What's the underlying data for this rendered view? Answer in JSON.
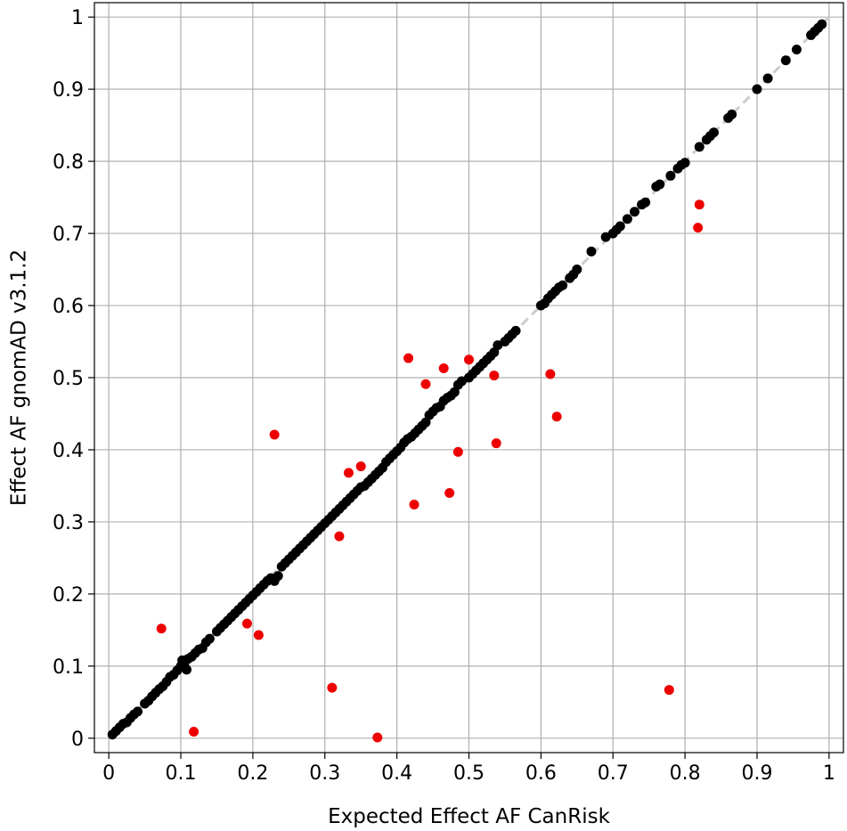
{
  "chart_data": {
    "type": "scatter",
    "title": "",
    "xlabel": "Expected Effect AF CanRisk",
    "ylabel": "Effect AF gnomAD v3.1.2",
    "xlim": [
      -0.02,
      1.02
    ],
    "ylim": [
      -0.02,
      1.02
    ],
    "x_ticks": [
      "0",
      "0.1",
      "0.2",
      "0.3",
      "0.4",
      "0.5",
      "0.6",
      "0.7",
      "0.8",
      "0.9",
      "1"
    ],
    "y_ticks": [
      "0",
      "0.1",
      "0.2",
      "0.3",
      "0.4",
      "0.5",
      "0.6",
      "0.7",
      "0.8",
      "0.9",
      "1"
    ],
    "grid": true,
    "reference_line": {
      "style": "dashed",
      "color": "#cccccc",
      "from": [
        0,
        0
      ],
      "to": [
        1,
        1
      ]
    },
    "series": [
      {
        "color": "#000000",
        "points": [
          [
            0.005,
            0.005
          ],
          [
            0.01,
            0.01
          ],
          [
            0.015,
            0.015
          ],
          [
            0.02,
            0.02
          ],
          [
            0.025,
            0.022
          ],
          [
            0.03,
            0.028
          ],
          [
            0.035,
            0.033
          ],
          [
            0.04,
            0.037
          ],
          [
            0.05,
            0.048
          ],
          [
            0.055,
            0.052
          ],
          [
            0.06,
            0.058
          ],
          [
            0.065,
            0.063
          ],
          [
            0.07,
            0.068
          ],
          [
            0.075,
            0.072
          ],
          [
            0.08,
            0.078
          ],
          [
            0.085,
            0.085
          ],
          [
            0.09,
            0.088
          ],
          [
            0.095,
            0.094
          ],
          [
            0.1,
            0.1
          ],
          [
            0.102,
            0.108
          ],
          [
            0.105,
            0.1
          ],
          [
            0.108,
            0.095
          ],
          [
            0.11,
            0.11
          ],
          [
            0.115,
            0.113
          ],
          [
            0.12,
            0.118
          ],
          [
            0.125,
            0.123
          ],
          [
            0.13,
            0.125
          ],
          [
            0.135,
            0.133
          ],
          [
            0.14,
            0.138
          ],
          [
            0.15,
            0.148
          ],
          [
            0.155,
            0.153
          ],
          [
            0.16,
            0.158
          ],
          [
            0.165,
            0.163
          ],
          [
            0.17,
            0.168
          ],
          [
            0.175,
            0.173
          ],
          [
            0.18,
            0.178
          ],
          [
            0.185,
            0.183
          ],
          [
            0.19,
            0.188
          ],
          [
            0.195,
            0.193
          ],
          [
            0.2,
            0.198
          ],
          [
            0.205,
            0.203
          ],
          [
            0.21,
            0.208
          ],
          [
            0.215,
            0.213
          ],
          [
            0.22,
            0.218
          ],
          [
            0.225,
            0.222
          ],
          [
            0.23,
            0.218
          ],
          [
            0.235,
            0.225
          ],
          [
            0.24,
            0.238
          ],
          [
            0.245,
            0.243
          ],
          [
            0.25,
            0.248
          ],
          [
            0.255,
            0.253
          ],
          [
            0.26,
            0.258
          ],
          [
            0.265,
            0.263
          ],
          [
            0.27,
            0.268
          ],
          [
            0.275,
            0.273
          ],
          [
            0.28,
            0.278
          ],
          [
            0.285,
            0.283
          ],
          [
            0.29,
            0.288
          ],
          [
            0.295,
            0.293
          ],
          [
            0.3,
            0.298
          ],
          [
            0.305,
            0.303
          ],
          [
            0.31,
            0.308
          ],
          [
            0.315,
            0.313
          ],
          [
            0.32,
            0.318
          ],
          [
            0.325,
            0.323
          ],
          [
            0.33,
            0.328
          ],
          [
            0.335,
            0.333
          ],
          [
            0.34,
            0.338
          ],
          [
            0.345,
            0.343
          ],
          [
            0.35,
            0.348
          ],
          [
            0.355,
            0.35
          ],
          [
            0.36,
            0.355
          ],
          [
            0.365,
            0.36
          ],
          [
            0.37,
            0.365
          ],
          [
            0.375,
            0.37
          ],
          [
            0.38,
            0.375
          ],
          [
            0.385,
            0.383
          ],
          [
            0.39,
            0.388
          ],
          [
            0.395,
            0.393
          ],
          [
            0.4,
            0.398
          ],
          [
            0.405,
            0.403
          ],
          [
            0.41,
            0.41
          ],
          [
            0.415,
            0.415
          ],
          [
            0.42,
            0.418
          ],
          [
            0.425,
            0.423
          ],
          [
            0.43,
            0.428
          ],
          [
            0.435,
            0.433
          ],
          [
            0.44,
            0.438
          ],
          [
            0.445,
            0.448
          ],
          [
            0.45,
            0.453
          ],
          [
            0.455,
            0.458
          ],
          [
            0.46,
            0.46
          ],
          [
            0.465,
            0.468
          ],
          [
            0.47,
            0.472
          ],
          [
            0.475,
            0.475
          ],
          [
            0.48,
            0.48
          ],
          [
            0.485,
            0.49
          ],
          [
            0.49,
            0.495
          ],
          [
            0.5,
            0.5
          ],
          [
            0.505,
            0.505
          ],
          [
            0.51,
            0.51
          ],
          [
            0.515,
            0.515
          ],
          [
            0.52,
            0.52
          ],
          [
            0.525,
            0.525
          ],
          [
            0.53,
            0.53
          ],
          [
            0.535,
            0.535
          ],
          [
            0.54,
            0.545
          ],
          [
            0.55,
            0.55
          ],
          [
            0.555,
            0.555
          ],
          [
            0.56,
            0.56
          ],
          [
            0.565,
            0.565
          ],
          [
            0.6,
            0.6
          ],
          [
            0.605,
            0.603
          ],
          [
            0.61,
            0.61
          ],
          [
            0.615,
            0.615
          ],
          [
            0.62,
            0.62
          ],
          [
            0.625,
            0.625
          ],
          [
            0.63,
            0.628
          ],
          [
            0.64,
            0.638
          ],
          [
            0.645,
            0.643
          ],
          [
            0.65,
            0.65
          ],
          [
            0.67,
            0.675
          ],
          [
            0.69,
            0.695
          ],
          [
            0.7,
            0.7
          ],
          [
            0.705,
            0.705
          ],
          [
            0.71,
            0.71
          ],
          [
            0.72,
            0.72
          ],
          [
            0.73,
            0.73
          ],
          [
            0.74,
            0.74
          ],
          [
            0.745,
            0.743
          ],
          [
            0.76,
            0.765
          ],
          [
            0.765,
            0.768
          ],
          [
            0.78,
            0.78
          ],
          [
            0.79,
            0.79
          ],
          [
            0.795,
            0.795
          ],
          [
            0.8,
            0.798
          ],
          [
            0.82,
            0.82
          ],
          [
            0.83,
            0.83
          ],
          [
            0.835,
            0.835
          ],
          [
            0.84,
            0.84
          ],
          [
            0.86,
            0.86
          ],
          [
            0.865,
            0.865
          ],
          [
            0.9,
            0.9
          ],
          [
            0.915,
            0.915
          ],
          [
            0.94,
            0.94
          ],
          [
            0.955,
            0.955
          ],
          [
            0.975,
            0.975
          ],
          [
            0.98,
            0.98
          ],
          [
            0.985,
            0.985
          ],
          [
            0.99,
            0.99
          ]
        ]
      },
      {
        "color": "#ee0000",
        "points": [
          [
            0.073,
            0.152
          ],
          [
            0.118,
            0.009
          ],
          [
            0.192,
            0.159
          ],
          [
            0.208,
            0.143
          ],
          [
            0.23,
            0.421
          ],
          [
            0.31,
            0.07
          ],
          [
            0.32,
            0.28
          ],
          [
            0.333,
            0.368
          ],
          [
            0.35,
            0.377
          ],
          [
            0.373,
            0.001
          ],
          [
            0.416,
            0.527
          ],
          [
            0.424,
            0.324
          ],
          [
            0.44,
            0.491
          ],
          [
            0.465,
            0.513
          ],
          [
            0.473,
            0.34
          ],
          [
            0.485,
            0.397
          ],
          [
            0.5,
            0.525
          ],
          [
            0.535,
            0.503
          ],
          [
            0.538,
            0.409
          ],
          [
            0.613,
            0.505
          ],
          [
            0.622,
            0.446
          ],
          [
            0.778,
            0.067
          ],
          [
            0.818,
            0.708
          ],
          [
            0.82,
            0.74
          ]
        ]
      }
    ]
  }
}
